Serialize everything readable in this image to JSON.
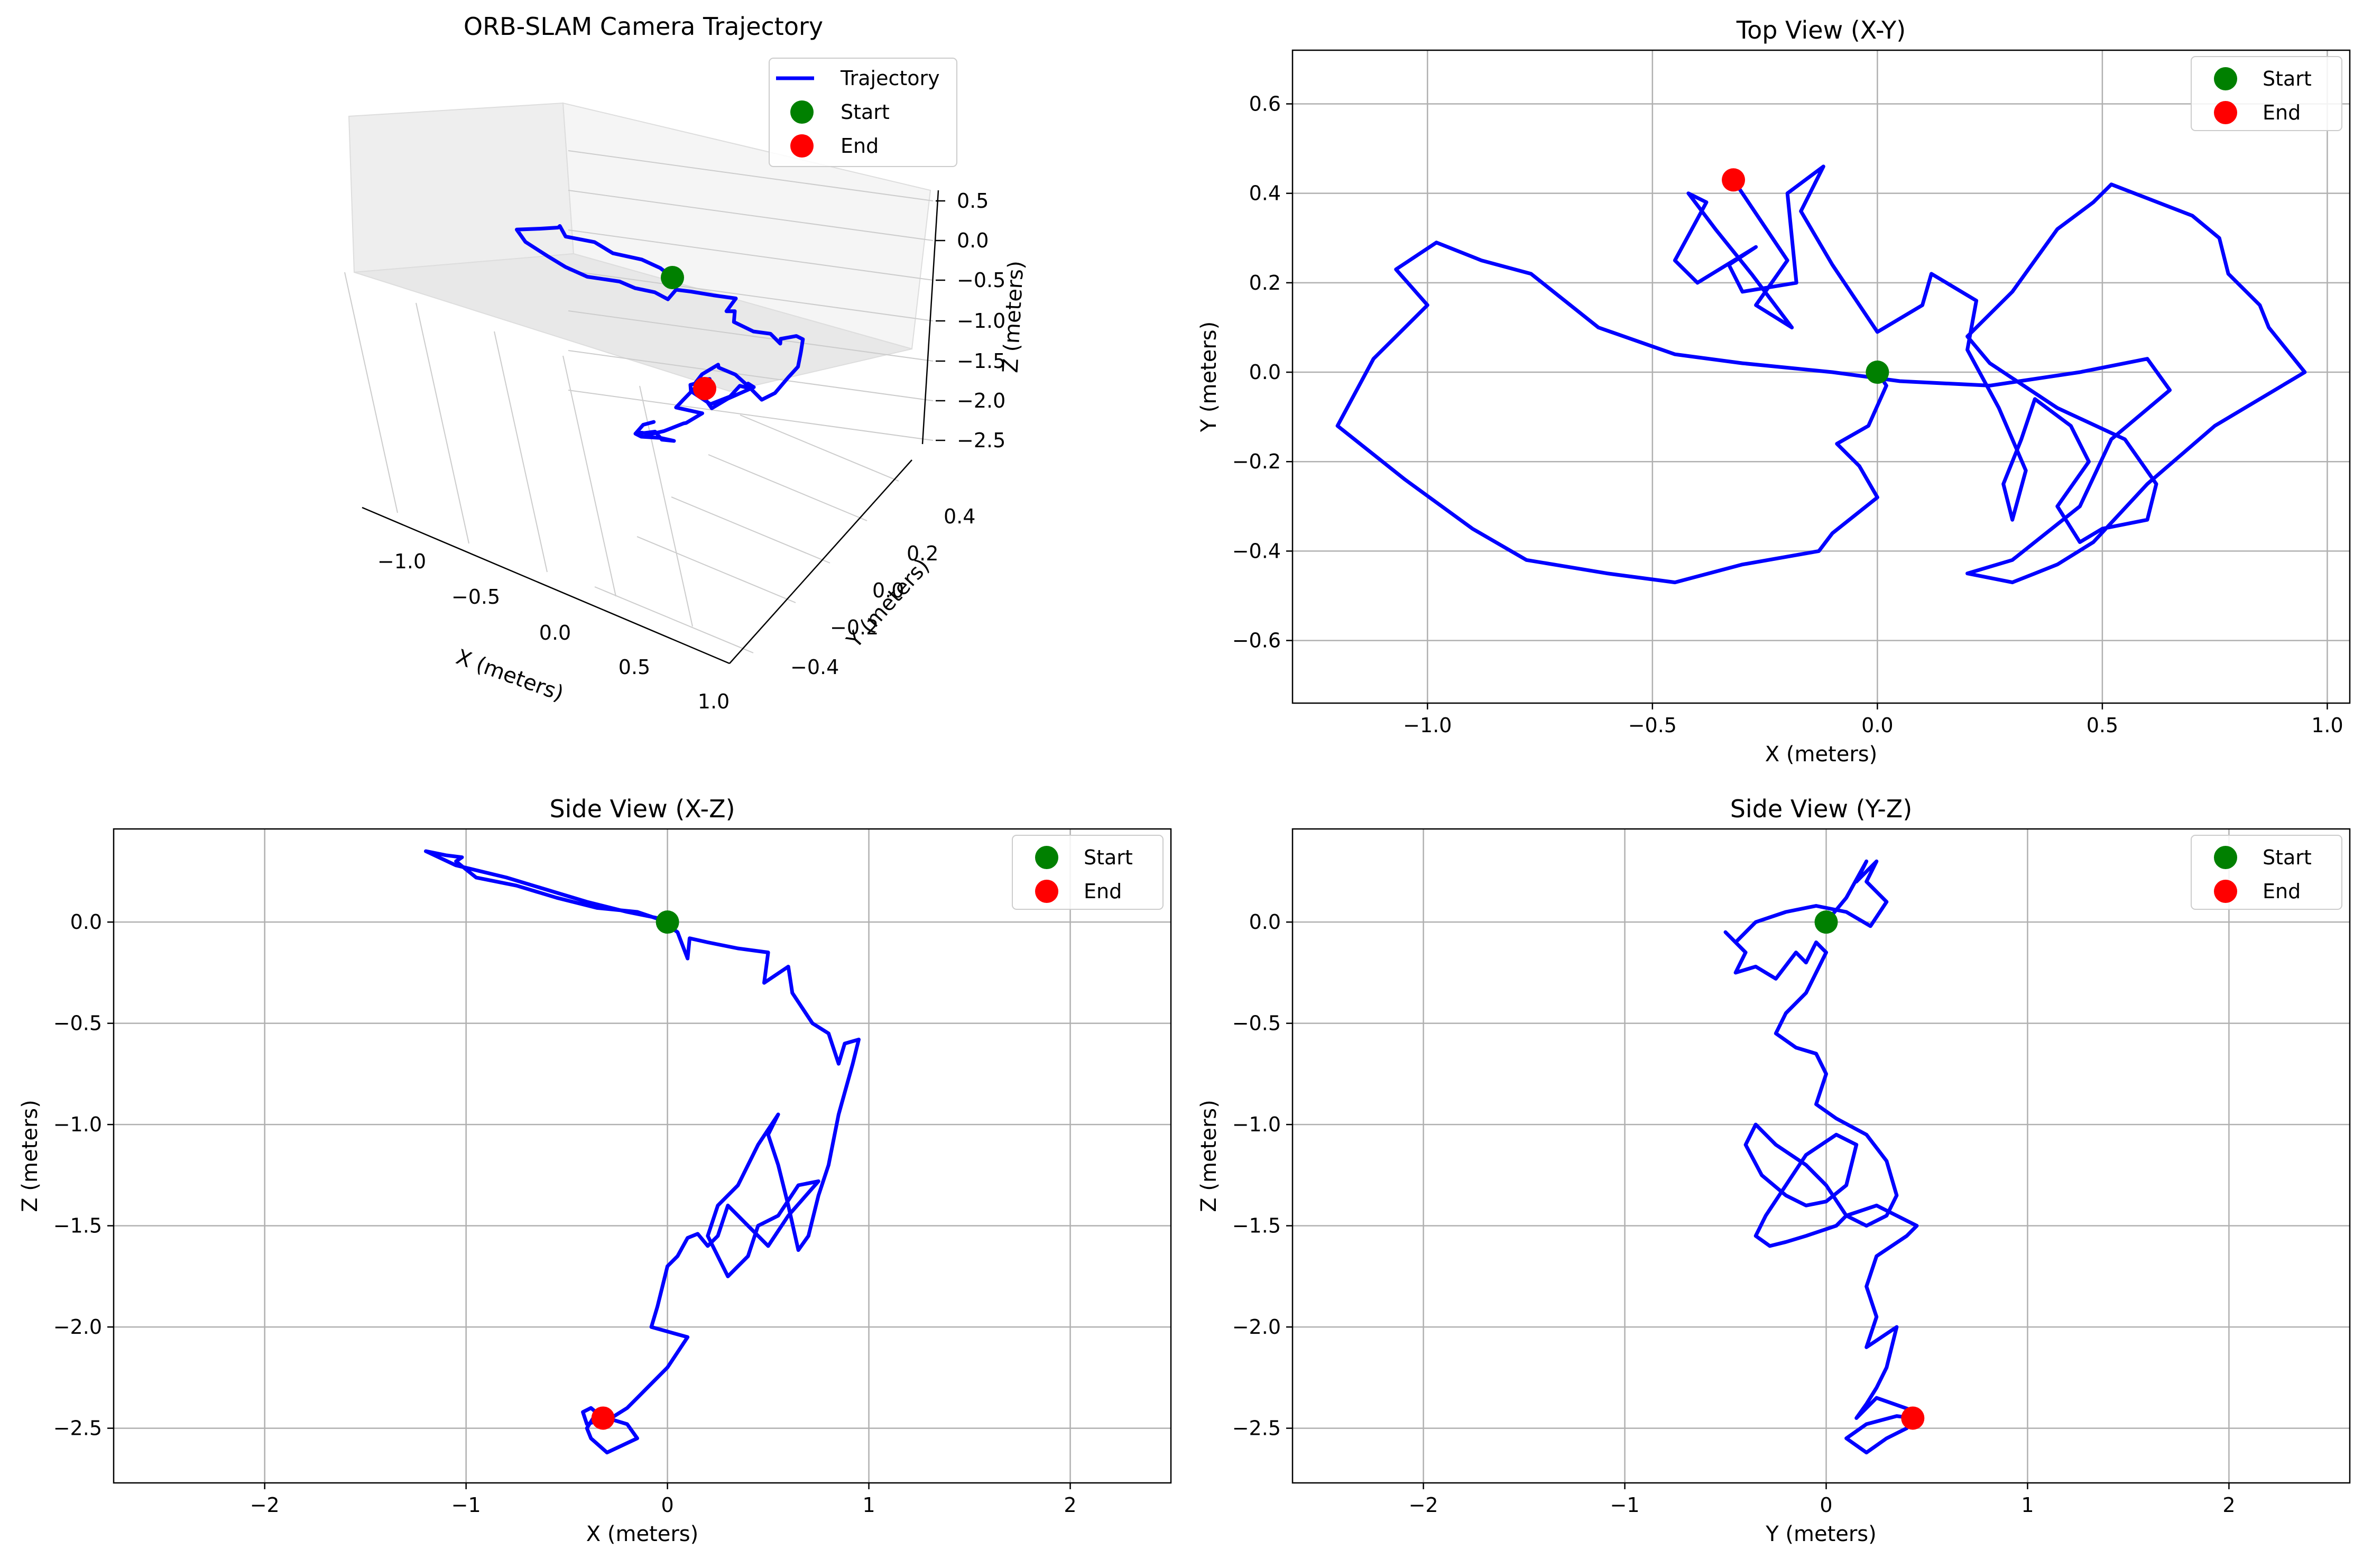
{
  "colors": {
    "trajectory": "#0000ff",
    "start": "#008000",
    "end": "#ff0000",
    "grid": "#b0b0b0",
    "pane_fill": "#f2f2f2"
  },
  "chart_data": [
    {
      "id": "traj3d",
      "type": "line",
      "title": "ORB-SLAM Camera Trajectory",
      "xlabel": "X (meters)",
      "ylabel": "Y (meters)",
      "zlabel": "Z (meters)",
      "xticks": [
        "−1.0",
        "−0.5",
        "0.0",
        "0.5",
        "1.0"
      ],
      "yticks": [
        "−0.4",
        "−0.2",
        "0.0",
        "0.2",
        "0.4"
      ],
      "zticks": [
        "0.5",
        "0.0",
        "−0.5",
        "−1.0",
        "−1.5",
        "−2.0",
        "−2.5"
      ],
      "legend": {
        "position": "top-right",
        "entries": [
          "Trajectory",
          "Start",
          "End"
        ]
      },
      "grid": true,
      "projection": "3d"
    },
    {
      "id": "xy",
      "type": "line",
      "title": "Top View (X-Y)",
      "xlabel": "X (meters)",
      "ylabel": "Y (meters)",
      "xlim": [
        -1.3,
        1.05
      ],
      "ylim": [
        -0.74,
        0.72
      ],
      "xticks": [
        -1.0,
        -0.5,
        0.0,
        0.5,
        1.0
      ],
      "yticks": [
        -0.6,
        -0.4,
        -0.2,
        0.0,
        0.2,
        0.4,
        0.6
      ],
      "tick_labels_x": [
        "−1.0",
        "−0.5",
        "0.0",
        "0.5",
        "1.0"
      ],
      "tick_labels_y": [
        "−0.6",
        "−0.4",
        "−0.2",
        "0.0",
        "0.2",
        "0.4",
        "0.6"
      ],
      "grid": true,
      "legend": {
        "position": "top-right",
        "entries": [
          "Start",
          "End"
        ]
      },
      "start": [
        0.0,
        0.0
      ],
      "end": [
        -0.32,
        0.43
      ],
      "x": [
        0.0,
        0.02,
        -0.02,
        -0.09,
        -0.04,
        0.0,
        -0.1,
        -0.13,
        -0.3,
        -0.45,
        -0.6,
        -0.78,
        -0.9,
        -1.05,
        -1.2,
        -1.12,
        -1.0,
        -1.07,
        -0.98,
        -0.88,
        -0.77,
        -0.62,
        -0.45,
        -0.3,
        -0.1,
        0.05,
        0.25,
        0.45,
        0.6,
        0.65,
        0.52,
        0.45,
        0.3,
        0.2,
        0.3,
        0.35,
        0.4,
        0.48,
        0.6,
        0.75,
        0.95,
        0.87,
        0.85,
        0.78,
        0.76,
        0.7,
        0.52,
        0.48,
        0.4,
        0.3,
        0.2,
        0.25,
        0.4,
        0.55,
        0.62,
        0.6,
        0.5,
        0.45,
        0.4,
        0.47,
        0.43,
        0.35,
        0.32,
        0.28,
        0.3,
        0.33,
        0.27,
        0.2,
        0.22,
        0.12,
        0.1,
        0.0,
        -0.1,
        -0.17,
        -0.12,
        -0.2,
        -0.18,
        -0.3,
        -0.33,
        -0.27,
        -0.4,
        -0.45,
        -0.38,
        -0.42,
        -0.36,
        -0.28,
        -0.19,
        -0.27,
        -0.2,
        -0.32
      ],
      "y": [
        0.0,
        -0.03,
        -0.12,
        -0.16,
        -0.21,
        -0.28,
        -0.36,
        -0.4,
        -0.43,
        -0.47,
        -0.45,
        -0.42,
        -0.35,
        -0.24,
        -0.12,
        0.03,
        0.15,
        0.23,
        0.29,
        0.25,
        0.22,
        0.1,
        0.04,
        0.02,
        0.0,
        -0.02,
        -0.03,
        0.0,
        0.03,
        -0.04,
        -0.15,
        -0.3,
        -0.42,
        -0.45,
        -0.47,
        -0.45,
        -0.43,
        -0.38,
        -0.25,
        -0.12,
        0.0,
        0.1,
        0.15,
        0.22,
        0.3,
        0.35,
        0.42,
        0.38,
        0.32,
        0.18,
        0.08,
        0.02,
        -0.08,
        -0.15,
        -0.25,
        -0.33,
        -0.35,
        -0.38,
        -0.3,
        -0.2,
        -0.12,
        -0.06,
        -0.15,
        -0.25,
        -0.33,
        -0.22,
        -0.08,
        0.05,
        0.16,
        0.22,
        0.15,
        0.09,
        0.24,
        0.36,
        0.46,
        0.4,
        0.2,
        0.18,
        0.24,
        0.28,
        0.2,
        0.25,
        0.38,
        0.4,
        0.32,
        0.22,
        0.1,
        0.15,
        0.25,
        0.43
      ]
    },
    {
      "id": "xz",
      "type": "line",
      "title": "Side View (X-Z)",
      "xlabel": "X (meters)",
      "ylabel": "Z (meters)",
      "xlim": [
        -2.75,
        2.5
      ],
      "ylim": [
        -2.77,
        0.46
      ],
      "xticks": [
        -2,
        -1,
        0,
        1,
        2
      ],
      "yticks": [
        -2.5,
        -2.0,
        -1.5,
        -1.0,
        -0.5,
        0.0
      ],
      "tick_labels_x": [
        "−2",
        "−1",
        "0",
        "1",
        "2"
      ],
      "tick_labels_y": [
        "−2.5",
        "−2.0",
        "−1.5",
        "−1.0",
        "−0.5",
        "0.0"
      ],
      "grid": true,
      "legend": {
        "position": "top-right",
        "entries": [
          "Start",
          "End"
        ]
      },
      "start": [
        0.0,
        0.0
      ],
      "end": [
        -0.32,
        -2.45
      ],
      "x": [
        0.0,
        -0.15,
        -0.35,
        -0.55,
        -0.75,
        -0.95,
        -1.05,
        -1.02,
        -1.1,
        -1.2,
        -1.05,
        -0.8,
        -0.6,
        -0.4,
        -0.2,
        -0.05,
        0.05,
        0.1,
        0.11,
        0.2,
        0.35,
        0.5,
        0.48,
        0.6,
        0.62,
        0.72,
        0.8,
        0.85,
        0.88,
        0.95,
        0.92,
        0.85,
        0.8,
        0.75,
        0.7,
        0.65,
        0.6,
        0.55,
        0.5,
        0.55,
        0.45,
        0.35,
        0.25,
        0.2,
        0.3,
        0.4,
        0.45,
        0.55,
        0.65,
        0.75,
        0.6,
        0.5,
        0.4,
        0.3,
        0.25,
        0.2,
        0.15,
        0.1,
        0.05,
        0.0,
        -0.05,
        -0.08,
        0.1,
        0.0,
        -0.1,
        -0.15,
        -0.2,
        -0.28,
        -0.35,
        -0.4,
        -0.38,
        -0.3,
        -0.15,
        -0.2,
        -0.3,
        -0.4,
        -0.42,
        -0.38,
        -0.32
      ],
      "y": [
        0.0,
        0.05,
        0.07,
        0.12,
        0.18,
        0.22,
        0.3,
        0.32,
        0.33,
        0.35,
        0.28,
        0.22,
        0.16,
        0.1,
        0.05,
        0.02,
        -0.05,
        -0.18,
        -0.08,
        -0.1,
        -0.13,
        -0.15,
        -0.3,
        -0.22,
        -0.35,
        -0.5,
        -0.55,
        -0.7,
        -0.6,
        -0.58,
        -0.7,
        -0.95,
        -1.2,
        -1.35,
        -1.55,
        -1.62,
        -1.4,
        -1.2,
        -1.05,
        -0.95,
        -1.1,
        -1.3,
        -1.4,
        -1.55,
        -1.75,
        -1.65,
        -1.5,
        -1.45,
        -1.3,
        -1.28,
        -1.45,
        -1.6,
        -1.5,
        -1.4,
        -1.55,
        -1.6,
        -1.54,
        -1.56,
        -1.65,
        -1.7,
        -1.9,
        -2.0,
        -2.05,
        -2.2,
        -2.3,
        -2.35,
        -2.4,
        -2.45,
        -2.42,
        -2.5,
        -2.55,
        -2.62,
        -2.55,
        -2.48,
        -2.45,
        -2.48,
        -2.42,
        -2.4,
        -2.45
      ]
    },
    {
      "id": "yz",
      "type": "line",
      "title": "Side View (Y-Z)",
      "xlabel": "Y (meters)",
      "ylabel": "Z (meters)",
      "xlim": [
        -2.65,
        2.6
      ],
      "ylim": [
        -2.77,
        0.46
      ],
      "xticks": [
        -2,
        -1,
        0,
        1,
        2
      ],
      "yticks": [
        -2.5,
        -2.0,
        -1.5,
        -1.0,
        -0.5,
        0.0
      ],
      "tick_labels_x": [
        "−2",
        "−1",
        "0",
        "1",
        "2"
      ],
      "tick_labels_y": [
        "−2.5",
        "−2.0",
        "−1.5",
        "−1.0",
        "−0.5",
        "0.0"
      ],
      "grid": true,
      "legend": {
        "position": "top-right",
        "entries": [
          "Start",
          "End"
        ]
      },
      "start": [
        0.0,
        0.0
      ],
      "end": [
        0.43,
        -2.45
      ],
      "x": [
        0.0,
        0.1,
        0.2,
        0.15,
        0.25,
        0.2,
        0.3,
        0.22,
        0.1,
        -0.05,
        -0.2,
        -0.35,
        -0.45,
        -0.5,
        -0.4,
        -0.45,
        -0.35,
        -0.25,
        -0.15,
        -0.1,
        -0.05,
        0.0,
        -0.1,
        -0.2,
        -0.25,
        -0.15,
        -0.05,
        0.0,
        -0.05,
        0.05,
        0.2,
        0.3,
        0.35,
        0.3,
        0.2,
        0.1,
        0.0,
        -0.1,
        -0.25,
        -0.35,
        -0.4,
        -0.32,
        -0.2,
        -0.1,
        0.0,
        0.1,
        0.15,
        0.05,
        -0.1,
        -0.2,
        -0.3,
        -0.35,
        -0.28,
        -0.2,
        -0.1,
        0.05,
        0.1,
        0.25,
        0.45,
        0.4,
        0.25,
        0.2,
        0.25,
        0.2,
        0.35,
        0.3,
        0.25,
        0.2,
        0.15,
        0.25,
        0.45,
        0.4,
        0.3,
        0.2,
        0.1,
        0.2,
        0.35,
        0.43
      ],
      "y": [
        0.0,
        0.12,
        0.3,
        0.2,
        0.3,
        0.2,
        0.1,
        -0.02,
        0.05,
        0.08,
        0.05,
        0.0,
        -0.1,
        -0.05,
        -0.15,
        -0.25,
        -0.22,
        -0.28,
        -0.15,
        -0.2,
        -0.1,
        -0.15,
        -0.35,
        -0.45,
        -0.55,
        -0.62,
        -0.65,
        -0.75,
        -0.9,
        -0.97,
        -1.05,
        -1.18,
        -1.35,
        -1.45,
        -1.5,
        -1.45,
        -1.3,
        -1.2,
        -1.1,
        -1.0,
        -1.1,
        -1.25,
        -1.35,
        -1.4,
        -1.38,
        -1.3,
        -1.1,
        -1.05,
        -1.15,
        -1.3,
        -1.45,
        -1.55,
        -1.6,
        -1.58,
        -1.55,
        -1.5,
        -1.45,
        -1.4,
        -1.5,
        -1.55,
        -1.65,
        -1.8,
        -1.95,
        -2.1,
        -2.0,
        -2.2,
        -2.3,
        -2.38,
        -2.45,
        -2.35,
        -2.42,
        -2.5,
        -2.55,
        -2.62,
        -2.55,
        -2.48,
        -2.44,
        -2.45
      ]
    }
  ]
}
